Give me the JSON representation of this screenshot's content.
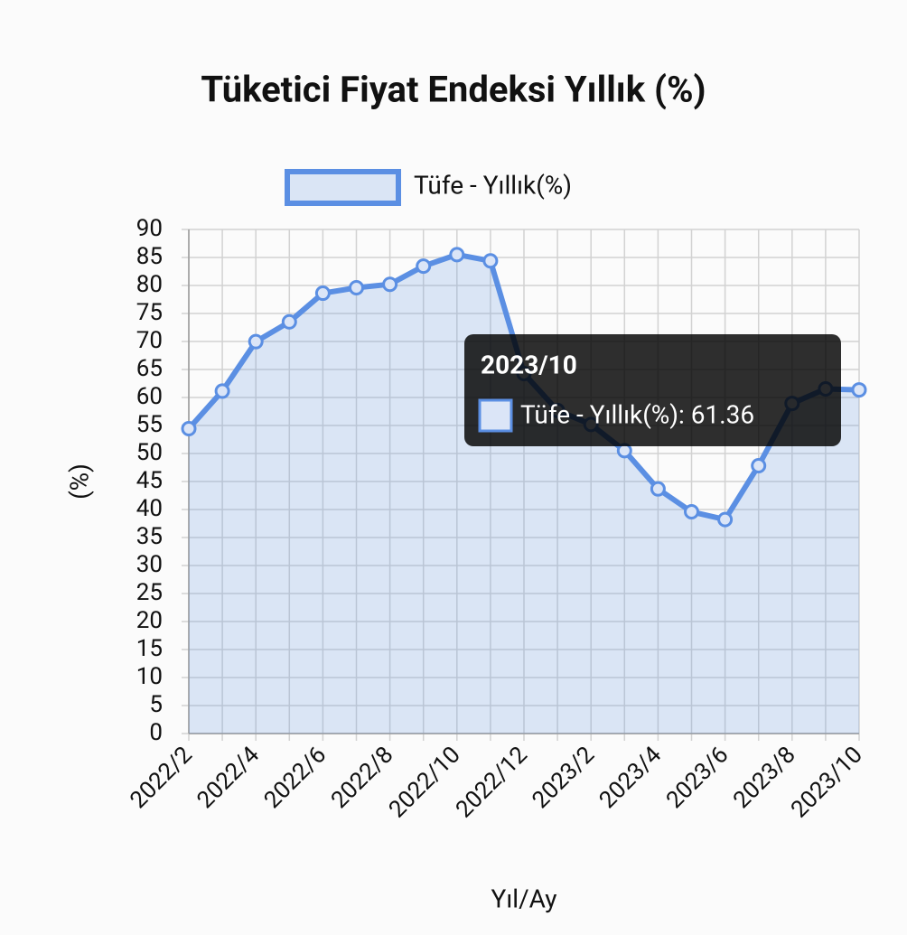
{
  "chart_data": {
    "type": "line",
    "title": "Tüketici Fiyat Endeksi Yıllık (%)",
    "x_label": "Yıl/Ay",
    "y_label": "(%)",
    "categories": [
      "2022/2",
      null,
      "2022/4",
      null,
      "2022/6",
      null,
      "2022/8",
      null,
      "2022/10",
      null,
      "2022/12",
      null,
      "2023/2",
      null,
      "2023/4",
      null,
      "2023/6",
      null,
      "2023/8",
      null,
      "2023/10"
    ],
    "series": [
      {
        "name": "Tüfe - Yıllık(%)",
        "color": "#5b8fe3",
        "values": [
          54.44,
          61.14,
          69.97,
          73.5,
          78.62,
          79.6,
          80.21,
          83.45,
          85.51,
          84.39,
          64.27,
          57.68,
          55.18,
          50.51,
          43.68,
          39.59,
          38.21,
          47.83,
          58.94,
          61.53,
          61.36
        ]
      }
    ],
    "ylim": [
      0,
      90
    ],
    "yticks": [
      0,
      5,
      10,
      15,
      20,
      25,
      30,
      35,
      40,
      45,
      50,
      55,
      60,
      65,
      70,
      75,
      80,
      85,
      90
    ],
    "grid": true,
    "legend": "top",
    "fill": true,
    "tooltip": {
      "title": "2023/10",
      "label": "Tüfe - Yıllık(%): 61.36"
    }
  }
}
